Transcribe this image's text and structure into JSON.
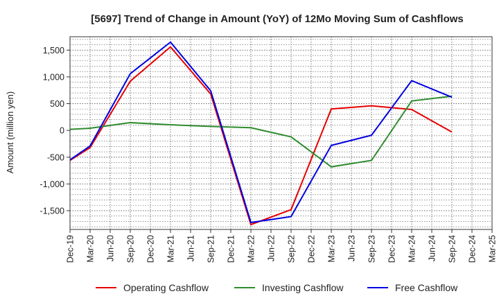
{
  "chart_data": {
    "type": "line",
    "title": "[5697]  Trend of Change in Amount (YoY) of 12Mo Moving Sum of Cashflows",
    "xlabel": "",
    "ylabel": "Amount (million yen)",
    "ylim": [
      -1850,
      1750
    ],
    "yticks": [
      -1500,
      -1000,
      -500,
      0,
      500,
      1000,
      1500
    ],
    "ytick_labels": [
      "-1,500",
      "-1,000",
      "-500",
      "0",
      "500",
      "1,000",
      "1,500"
    ],
    "categories": [
      "Dec-19",
      "Mar-20",
      "Jun-20",
      "Sep-20",
      "Dec-20",
      "Mar-21",
      "Jun-21",
      "Sep-21",
      "Dec-21",
      "Mar-22",
      "Jun-22",
      "Sep-22",
      "Dec-22",
      "Mar-23",
      "Jun-23",
      "Sep-23",
      "Dec-23",
      "Mar-24",
      "Jun-24",
      "Sep-24",
      "Dec-24",
      "Mar-25"
    ],
    "series": [
      {
        "name": "Operating Cashflow",
        "color": "#e60000",
        "points": [
          [
            0,
            -560
          ],
          [
            1,
            -320
          ],
          [
            3,
            920
          ],
          [
            5,
            1560
          ],
          [
            7,
            680
          ],
          [
            9,
            -1760
          ],
          [
            11,
            -1480
          ],
          [
            13,
            400
          ],
          [
            15,
            460
          ],
          [
            17,
            390
          ],
          [
            19,
            -30
          ]
        ]
      },
      {
        "name": "Investing Cashflow",
        "color": "#2e8b2e",
        "points": [
          [
            0,
            20
          ],
          [
            1,
            40
          ],
          [
            3,
            145
          ],
          [
            5,
            105
          ],
          [
            7,
            75
          ],
          [
            9,
            50
          ],
          [
            11,
            -120
          ],
          [
            13,
            -680
          ],
          [
            15,
            -560
          ],
          [
            17,
            550
          ],
          [
            19,
            640
          ]
        ]
      },
      {
        "name": "Free Cashflow",
        "color": "#0000e0",
        "points": [
          [
            0,
            -550
          ],
          [
            1,
            -290
          ],
          [
            3,
            1060
          ],
          [
            5,
            1650
          ],
          [
            7,
            740
          ],
          [
            9,
            -1720
          ],
          [
            11,
            -1610
          ],
          [
            13,
            -280
          ],
          [
            15,
            -90
          ],
          [
            17,
            930
          ],
          [
            19,
            620
          ]
        ]
      }
    ],
    "legend_position": "bottom",
    "grid": true
  }
}
